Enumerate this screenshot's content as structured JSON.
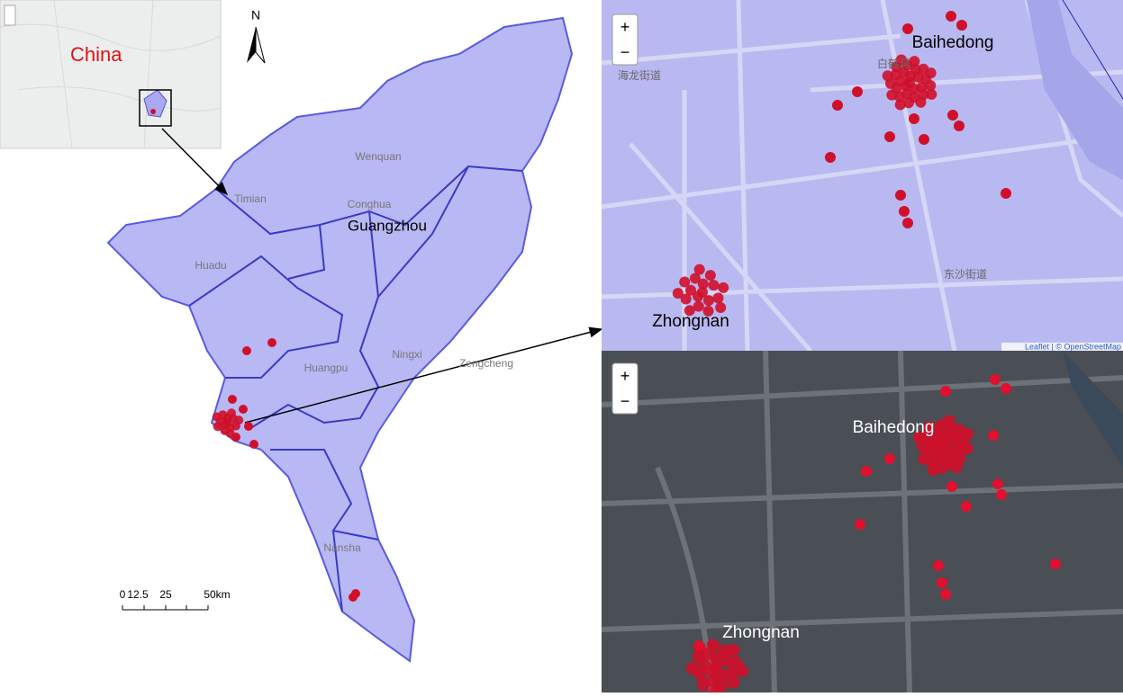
{
  "inset": {
    "label": "China"
  },
  "compass": {
    "label": "N"
  },
  "main_map": {
    "title": "Guangzhou",
    "districts": [
      "Wenquan",
      "Conghua",
      "Timian",
      "Huadu",
      "Zengcheng",
      "Ningxi",
      "Huangpu",
      "Nansha"
    ]
  },
  "scale_bar": {
    "labels": [
      "0",
      "12.5",
      "25",
      "50km"
    ]
  },
  "street_map": {
    "zoom_in": "+",
    "zoom_out": "−",
    "labels": [
      "Baihedong",
      "Zhongnan"
    ],
    "streets": [
      "海龙街道",
      "东沙街道",
      "白鹤洞"
    ],
    "attribution": "Leaflet | © OpenStreetMap"
  },
  "satellite_map": {
    "zoom_in": "+",
    "zoom_out": "−",
    "labels": [
      "Baihedong",
      "Zhongnan"
    ]
  }
}
